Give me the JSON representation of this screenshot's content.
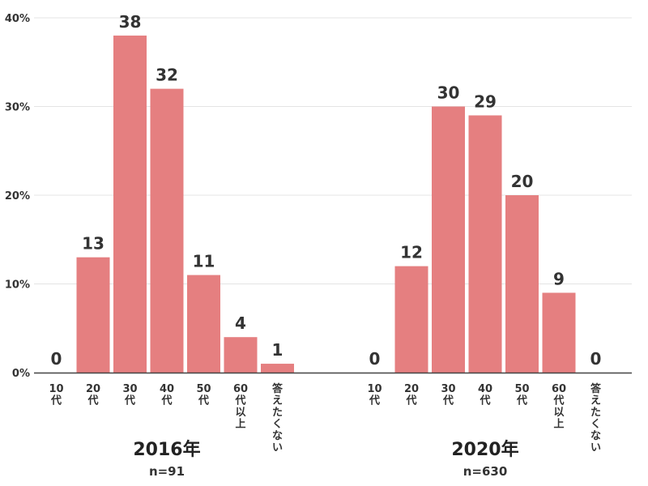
{
  "chart_data": {
    "type": "bar",
    "ylim": [
      0,
      40
    ],
    "y_ticks": [
      "0%",
      "10%",
      "20%",
      "30%",
      "40%"
    ],
    "bar_color": "#e57f80",
    "grid": true,
    "groups": [
      {
        "label": "2016年",
        "n_label": "n=91",
        "categories": [
          "10\n代",
          "20\n代",
          "30\n代",
          "40\n代",
          "50\n代",
          "60\n代\n以\n上",
          "答\nえ\nた\nく\nな\nい"
        ],
        "values": [
          0,
          13,
          38,
          32,
          11,
          4,
          1
        ]
      },
      {
        "label": "2020年",
        "n_label": "n=630",
        "categories": [
          "10\n代",
          "20\n代",
          "30\n代",
          "40\n代",
          "50\n代",
          "60\n代\n以\n上",
          "答\nえ\nた\nく\nな\nい"
        ],
        "values": [
          0,
          12,
          30,
          29,
          20,
          9,
          0
        ]
      }
    ]
  }
}
